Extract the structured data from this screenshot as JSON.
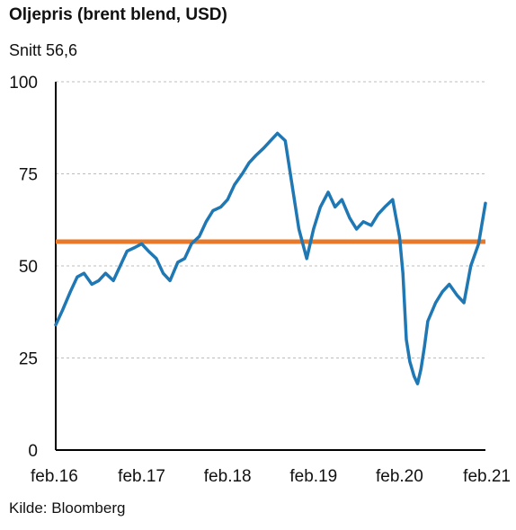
{
  "chart_data": {
    "type": "line",
    "title": "Oljepris (brent blend, USD)",
    "subtitle": "Snitt 56,6",
    "source": "Kilde: Bloomberg",
    "xlabel": "",
    "ylabel": "",
    "ylim": [
      0,
      100
    ],
    "xlim": [
      0,
      5
    ],
    "yticks": [
      0,
      25,
      50,
      75,
      100
    ],
    "xtick_labels": [
      "feb.16",
      "feb.17",
      "feb.18",
      "feb.19",
      "feb.20",
      "feb.21"
    ],
    "grid": true,
    "average": 56.6,
    "colors": {
      "series": "#1f78b4",
      "average": "#e8792a"
    },
    "series": [
      {
        "x": [
          0,
          0.08,
          0.17,
          0.25,
          0.33,
          0.42,
          0.5,
          0.58,
          0.67,
          0.75,
          0.83,
          0.92,
          1.0,
          1.08,
          1.17,
          1.25,
          1.33,
          1.42,
          1.5,
          1.58,
          1.67,
          1.75,
          1.83,
          1.92,
          2.0,
          2.08,
          2.17,
          2.25,
          2.33,
          2.42,
          2.5,
          2.58,
          2.67,
          2.75,
          2.83,
          2.92,
          3.0,
          3.08,
          3.17,
          3.25,
          3.33,
          3.42,
          3.5,
          3.58,
          3.67,
          3.75,
          3.83,
          3.92,
          4.0,
          4.04,
          4.08,
          4.12,
          4.17,
          4.21,
          4.25,
          4.29,
          4.33,
          4.42,
          4.5,
          4.58,
          4.67,
          4.75,
          4.83,
          4.92,
          5.0
        ],
        "y": [
          34,
          38,
          43,
          47,
          48,
          45,
          46,
          48,
          46,
          50,
          54,
          55,
          56,
          54,
          52,
          48,
          46,
          51,
          52,
          56,
          58,
          62,
          65,
          66,
          68,
          72,
          75,
          78,
          80,
          82,
          84,
          86,
          84,
          72,
          60,
          52,
          60,
          66,
          70,
          66,
          68,
          63,
          60,
          62,
          61,
          64,
          66,
          68,
          58,
          48,
          30,
          24,
          20,
          18,
          22,
          28,
          35,
          40,
          43,
          45,
          42,
          40,
          50,
          56,
          67
        ]
      }
    ]
  }
}
